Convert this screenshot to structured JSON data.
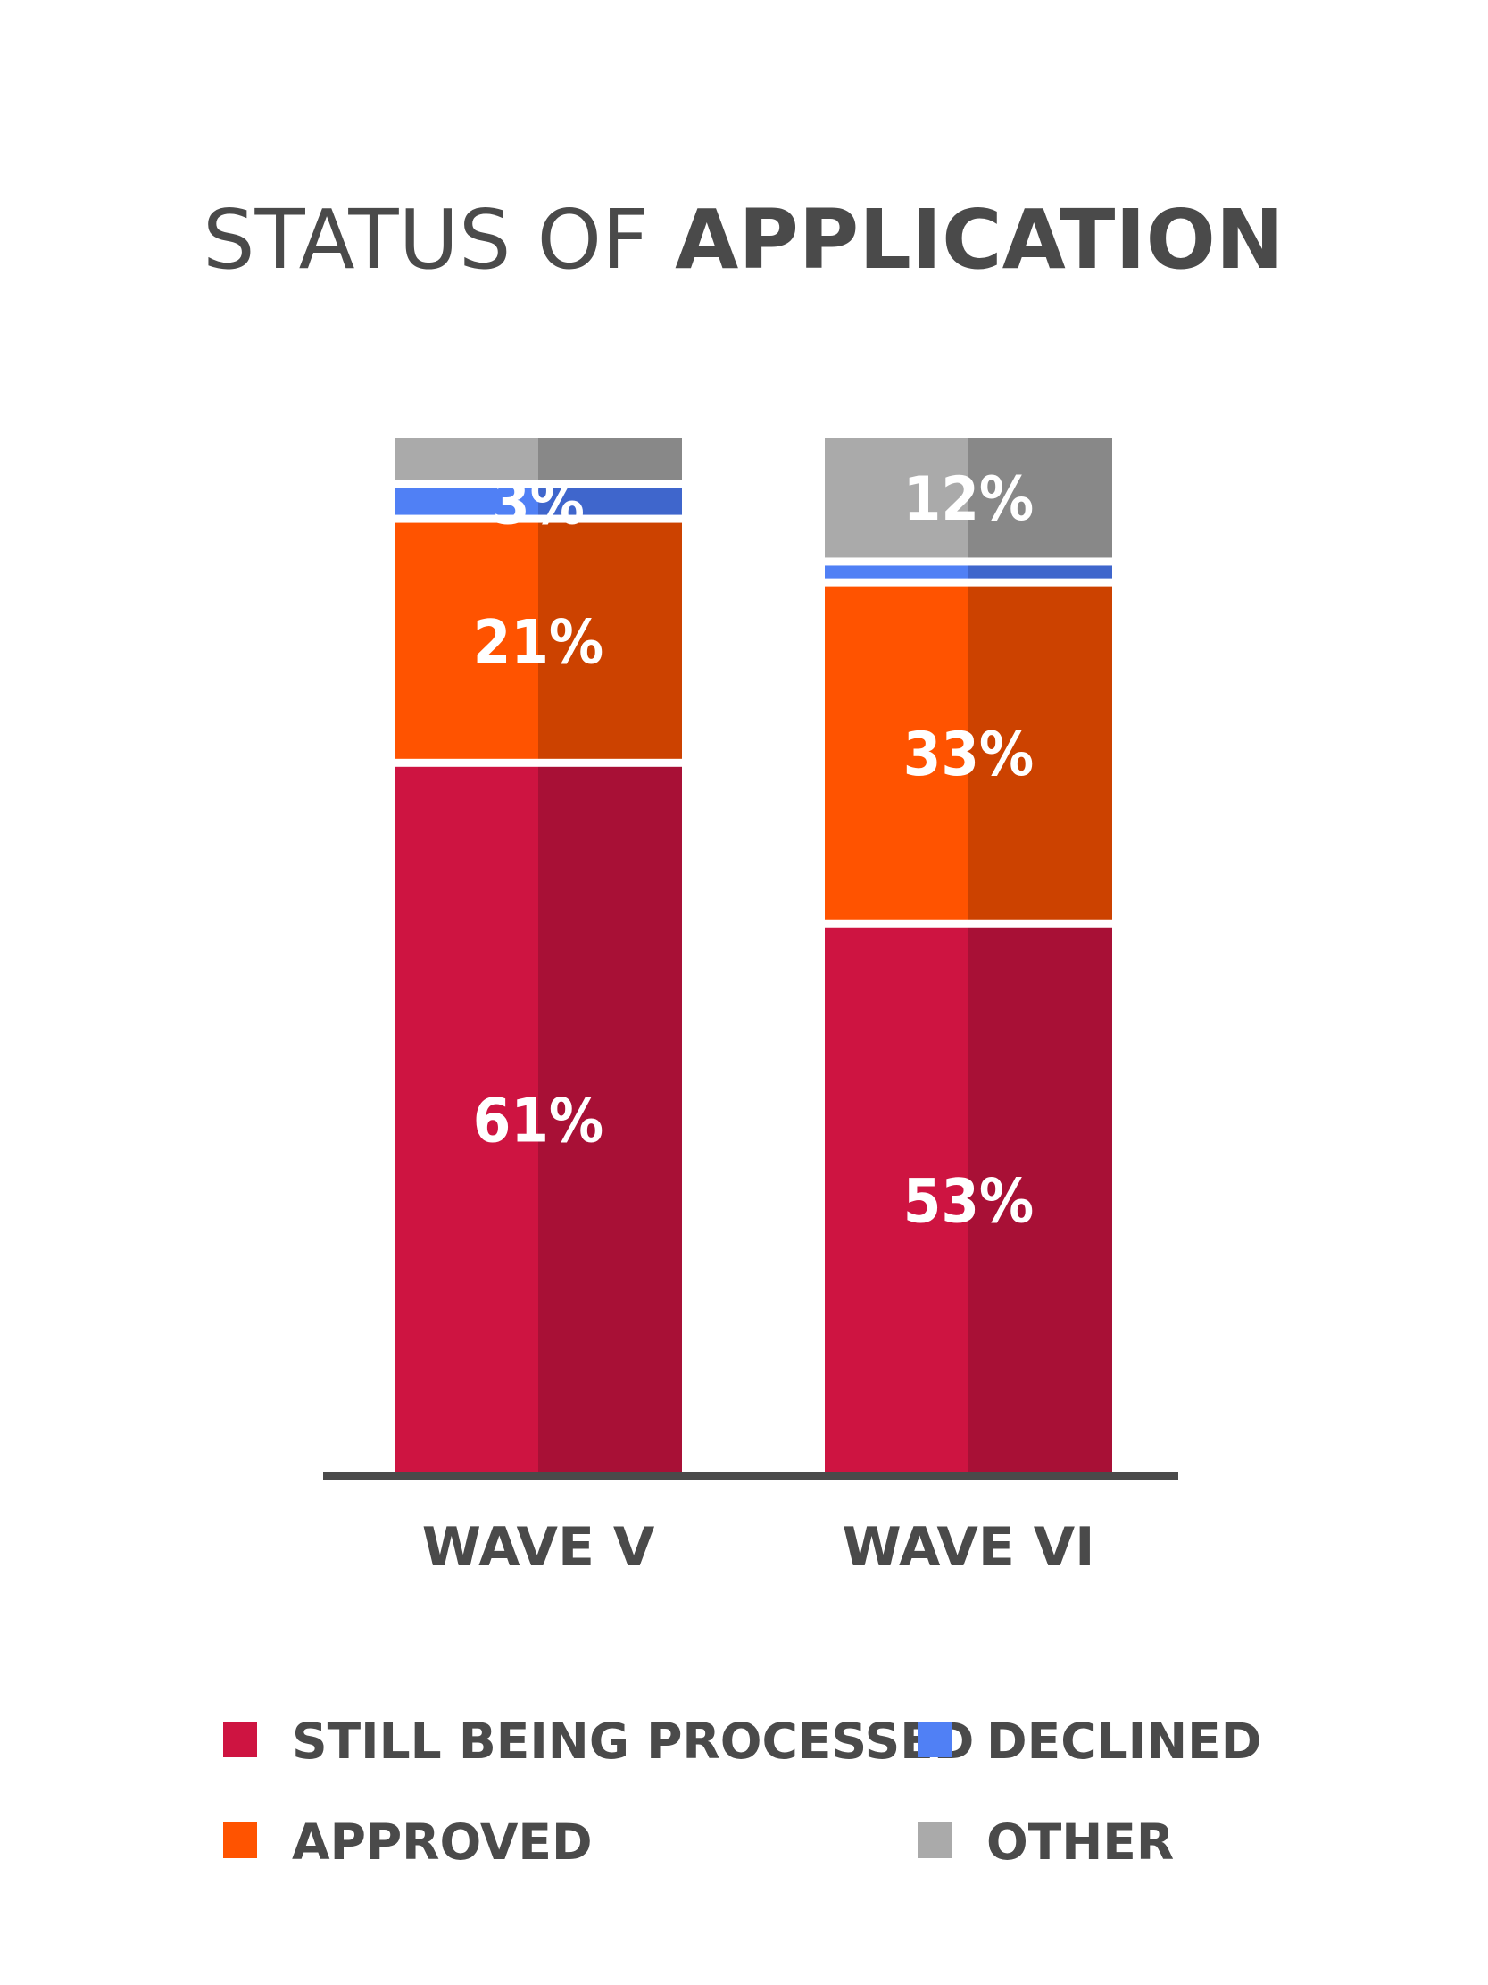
{
  "chart_data": {
    "type": "bar",
    "stacked": true,
    "title_part1": "STATUS OF ",
    "title_part2": "APPLICATION",
    "categories": [
      "WAVE V",
      "WAVE VI"
    ],
    "series": [
      {
        "name": "STILL BEING PROCESSED",
        "values": [
          61,
          53
        ],
        "labels": [
          "61%",
          "53%"
        ],
        "color": "#CE1441",
        "shade": "#A81036"
      },
      {
        "name": "APPROVED",
        "values": [
          21,
          33
        ],
        "labels": [
          "21%",
          "33%"
        ],
        "color": "#FF5300",
        "shade": "#CC4200"
      },
      {
        "name": "DECLINED",
        "values": [
          3,
          2
        ],
        "labels": [
          "3%",
          ""
        ],
        "color": "#5080F5",
        "shade": "#3F66CC"
      },
      {
        "name": "OTHER",
        "values": [
          4,
          12
        ],
        "labels": [
          "",
          "12%"
        ],
        "color": "#AAAAAA",
        "shade": "#888888"
      }
    ],
    "legend_order": [
      "STILL BEING PROCESSED",
      "DECLINED",
      "APPROVED",
      "OTHER"
    ],
    "legend_position": "bottom",
    "ylim": [
      0,
      100
    ],
    "grid": false,
    "axis_color": "#4A4A4A",
    "text_color": "#4A4A4A"
  }
}
